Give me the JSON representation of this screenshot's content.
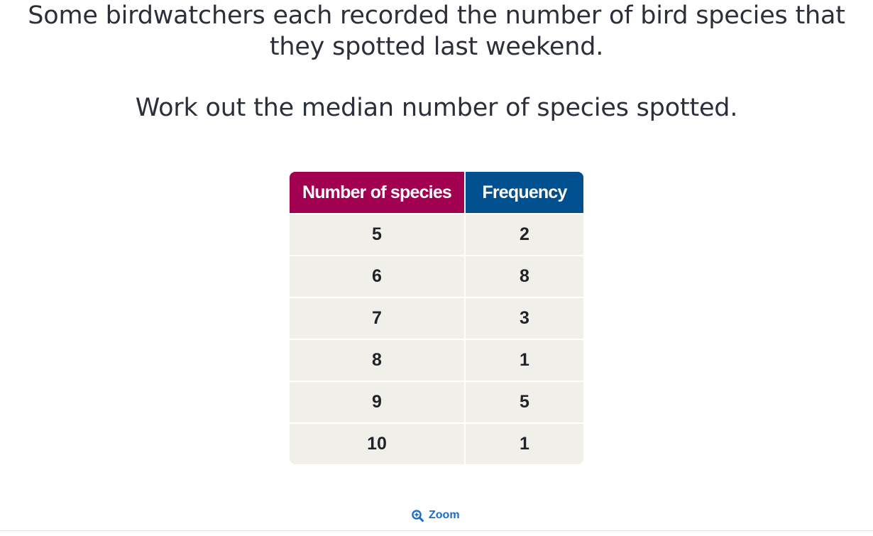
{
  "question": {
    "line1": "Some birdwatchers each recorded the number of bird species that",
    "line2": "they spotted last weekend.",
    "line3": "Work out the median number of species spotted."
  },
  "table": {
    "headers": {
      "species": "Number of species",
      "frequency": "Frequency"
    },
    "header_colors": {
      "species": "#a10050",
      "frequency": "#004f8f"
    },
    "rows": [
      {
        "species": "5",
        "frequency": "2"
      },
      {
        "species": "6",
        "frequency": "8"
      },
      {
        "species": "7",
        "frequency": "3"
      },
      {
        "species": "8",
        "frequency": "1"
      },
      {
        "species": "9",
        "frequency": "5"
      },
      {
        "species": "10",
        "frequency": "1"
      }
    ]
  },
  "zoom": {
    "label": "Zoom",
    "icon": "zoom-in-icon",
    "color": "#1a6fc4"
  }
}
